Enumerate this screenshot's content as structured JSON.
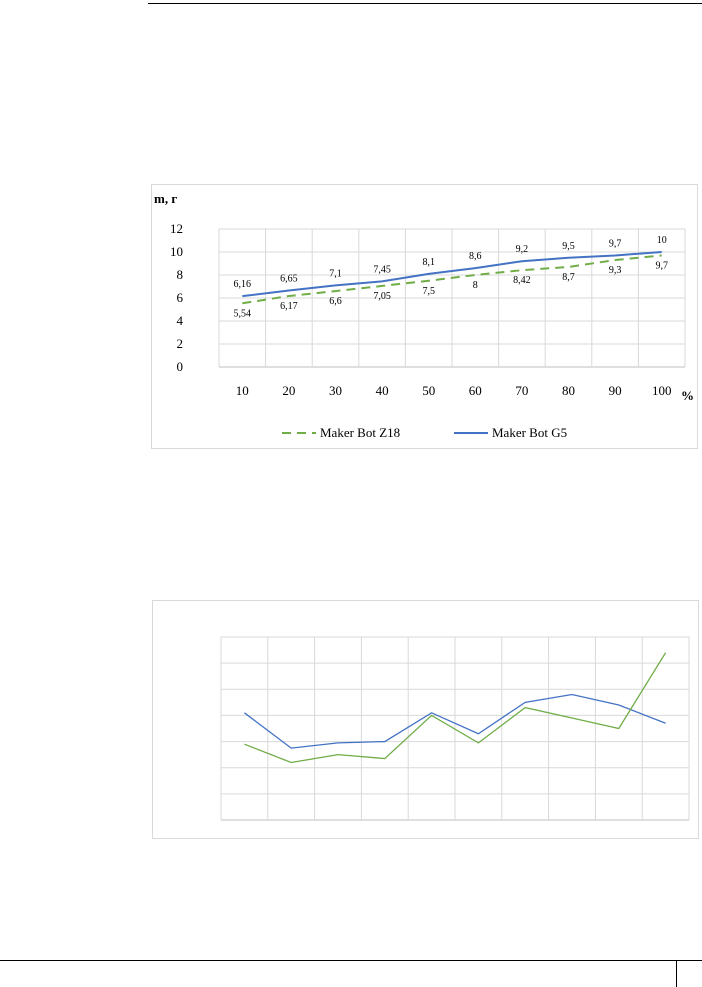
{
  "chart_data": [
    {
      "type": "line",
      "ylabel": "m, г",
      "xlabel": "%",
      "categories": [
        "10",
        "20",
        "30",
        "40",
        "50",
        "60",
        "70",
        "80",
        "90",
        "100"
      ],
      "ylim": [
        0,
        12
      ],
      "yticks": [
        "0",
        "2",
        "4",
        "6",
        "8",
        "10",
        "12"
      ],
      "grid": true,
      "legend_position": "bottom",
      "series": [
        {
          "name": "Maker Bot Z18",
          "color": "#70ad47",
          "style": "dashed",
          "values": [
            5.54,
            6.17,
            6.6,
            7.05,
            7.5,
            8,
            8.42,
            8.7,
            9.3,
            9.7
          ],
          "labels": [
            "5,54",
            "6,17",
            "6,6",
            "7,05",
            "7,5",
            "8",
            "8,42",
            "8,7",
            "9,3",
            "9,7"
          ]
        },
        {
          "name": "Maker Bot G5",
          "color": "#4472c4",
          "style": "solid",
          "values": [
            6.16,
            6.65,
            7.1,
            7.45,
            8.1,
            8.6,
            9.2,
            9.5,
            9.7,
            10
          ],
          "labels": [
            "6,16",
            "6,65",
            "7,1",
            "7,45",
            "8,1",
            "8,6",
            "9,2",
            "9,5",
            "9,7",
            "10"
          ]
        }
      ]
    },
    {
      "type": "line",
      "point_count": 10,
      "ylim": [
        0,
        7
      ],
      "grid": true,
      "legend_position": "bottom",
      "series": [
        {
          "color": "#4472c4",
          "values": [
            4.1,
            2.75,
            2.95,
            3.0,
            4.1,
            3.3,
            4.5,
            4.8,
            4.4,
            3.7
          ]
        },
        {
          "color": "#70ad47",
          "values": [
            2.9,
            2.2,
            2.5,
            2.35,
            4.0,
            2.95,
            4.3,
            3.9,
            3.5,
            6.4
          ]
        }
      ]
    }
  ]
}
